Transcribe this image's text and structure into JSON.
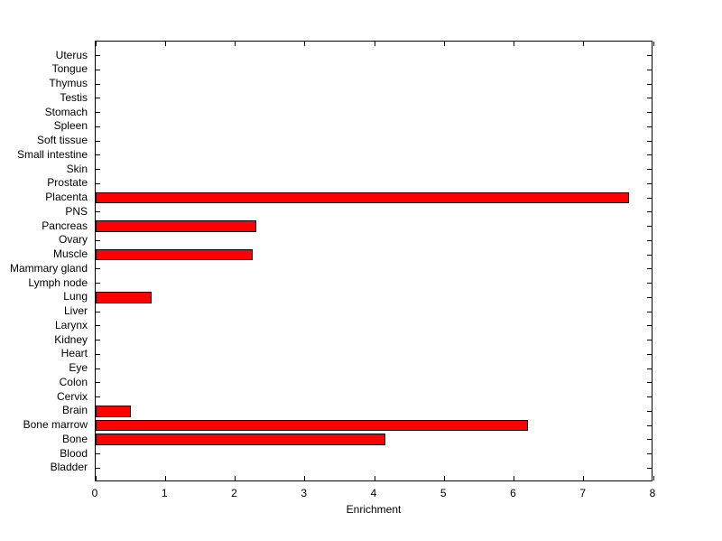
{
  "chart_data": {
    "type": "bar",
    "orientation": "horizontal",
    "title": "",
    "xlabel": "Enrichment",
    "ylabel": "",
    "xlim": [
      0,
      8
    ],
    "xticks": [
      0,
      1,
      2,
      3,
      4,
      5,
      6,
      7,
      8
    ],
    "grid": false,
    "legend": false,
    "bar_color": "#ff0000",
    "bar_edge_color": "#000000",
    "axis_color": "#000000",
    "background_color": "#ffffff",
    "categories": [
      "Uterus",
      "Tongue",
      "Thymus",
      "Testis",
      "Stomach",
      "Spleen",
      "Soft tissue",
      "Small intestine",
      "Skin",
      "Prostate",
      "Placenta",
      "PNS",
      "Pancreas",
      "Ovary",
      "Muscle",
      "Mammary gland",
      "Lymph node",
      "Lung",
      "Liver",
      "Larynx",
      "Kidney",
      "Heart",
      "Eye",
      "Colon",
      "Cervix",
      "Brain",
      "Bone marrow",
      "Bone",
      "Blood",
      "Bladder"
    ],
    "values": [
      0,
      0,
      0,
      0,
      0,
      0,
      0,
      0,
      0,
      0,
      7.65,
      0,
      2.3,
      0,
      2.25,
      0,
      0,
      0.8,
      0,
      0,
      0,
      0,
      0,
      0,
      0,
      0.5,
      6.2,
      4.15,
      0,
      0
    ]
  }
}
